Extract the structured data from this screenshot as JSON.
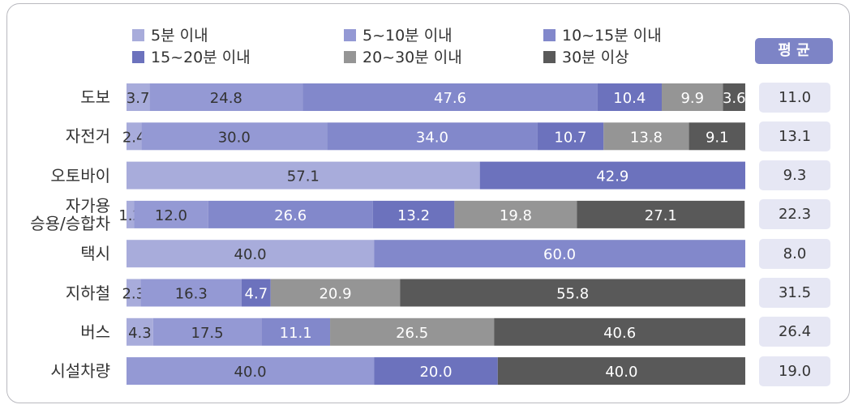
{
  "legend": [
    {
      "label": "5분 이내",
      "color": "#a8acdb"
    },
    {
      "label": "5~10분 이내",
      "color": "#9499d4"
    },
    {
      "label": "10~15분 이내",
      "color": "#8288cb"
    },
    {
      "label": "15~20분 이내",
      "color": "#6c72bd"
    },
    {
      "label": "20~30분 이내",
      "color": "#959595"
    },
    {
      "label": "30분 이상",
      "color": "#595959"
    }
  ],
  "avg_header": "평 균",
  "chart_data": {
    "type": "bar",
    "orientation": "horizontal",
    "stacked": true,
    "xlim": [
      0,
      100
    ],
    "categories": [
      "도보",
      "자전거",
      "오토바이",
      "자가용 승용/승합차",
      "택시",
      "지하철",
      "버스",
      "시설차량"
    ],
    "category_lines": [
      [
        "도보"
      ],
      [
        "자전거"
      ],
      [
        "오토바이"
      ],
      [
        "자가용",
        "승용/승합차"
      ],
      [
        "택시"
      ],
      [
        "지하철"
      ],
      [
        "버스"
      ],
      [
        "시설차량"
      ]
    ],
    "series": [
      {
        "name": "5분 이내",
        "values": [
          3.7,
          2.4,
          57.1,
          1.2,
          40.0,
          2.3,
          4.3,
          null
        ]
      },
      {
        "name": "5~10분 이내",
        "values": [
          24.8,
          30.0,
          null,
          12.0,
          null,
          16.3,
          17.5,
          40.0
        ]
      },
      {
        "name": "10~15분 이내",
        "values": [
          47.6,
          34.0,
          null,
          26.6,
          60.0,
          null,
          11.1,
          null
        ]
      },
      {
        "name": "15~20분 이내",
        "values": [
          10.4,
          10.7,
          42.9,
          13.2,
          null,
          4.7,
          null,
          20.0
        ]
      },
      {
        "name": "20~30분 이내",
        "values": [
          9.9,
          13.8,
          null,
          19.8,
          null,
          20.9,
          26.5,
          null
        ]
      },
      {
        "name": "30분 이상",
        "values": [
          3.6,
          9.1,
          null,
          27.1,
          null,
          55.8,
          40.6,
          40.0
        ]
      }
    ],
    "value_labels": [
      [
        "3.7",
        "24.8",
        "47.6",
        "10.4",
        "9.9",
        "3.6"
      ],
      [
        "2.4",
        "30.0",
        "34.0",
        "10.7",
        "13.8",
        "9.1"
      ],
      [
        "57.1",
        "",
        "",
        "42.9",
        "",
        ""
      ],
      [
        "1.2",
        "12.0",
        "26.6",
        "13.2",
        "19.8",
        "27.1"
      ],
      [
        "40.0",
        "",
        "60.0",
        "",
        "",
        ""
      ],
      [
        "2.3",
        "16.3",
        "",
        "4.7",
        "20.9",
        "55.8"
      ],
      [
        "4.3",
        "17.5",
        "11.1",
        "",
        "26.5",
        "40.6"
      ],
      [
        "",
        "40.0",
        "",
        "20.0",
        "",
        "40.0"
      ]
    ],
    "averages": [
      "11.0",
      "13.1",
      "9.3",
      "22.3",
      "8.0",
      "31.5",
      "26.4",
      "19.0"
    ]
  }
}
